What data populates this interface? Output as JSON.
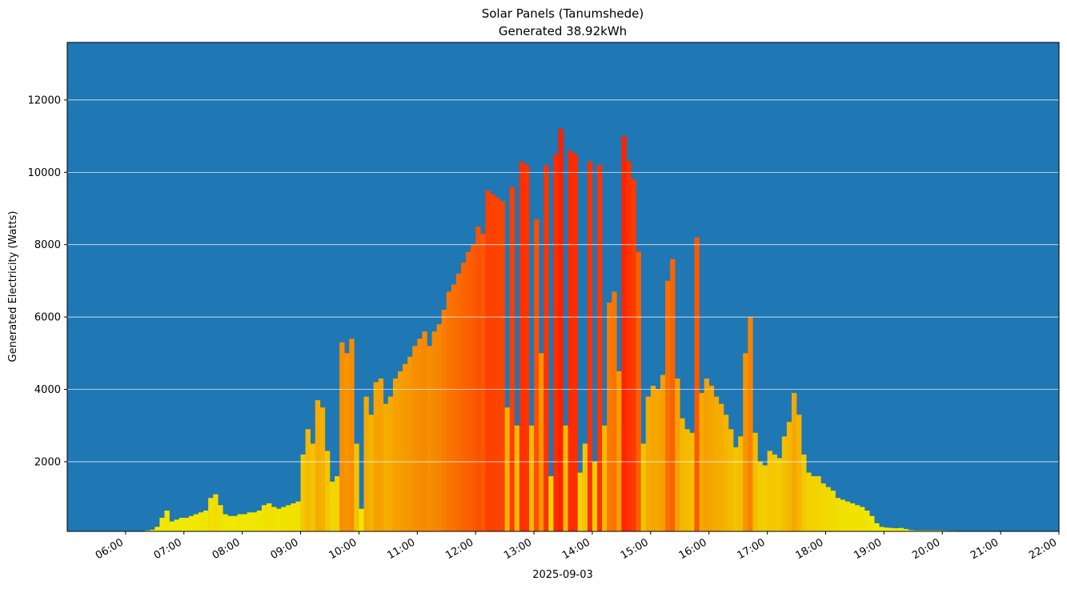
{
  "chart_data": {
    "type": "bar",
    "title": "Solar Panels (Tanumshede)",
    "subtitle": "Generated 38.92kWh",
    "x_label": "2025-09-03",
    "y_label": "Generated Electricity (Watts)",
    "background": "#1f77b4",
    "colormap": [
      "#f0f000",
      "#ff2000"
    ],
    "grid": true,
    "grid_color": "#ffffff",
    "xlim": [
      "05:00",
      "22:00"
    ],
    "xticks": [
      "06:00",
      "07:00",
      "08:00",
      "09:00",
      "10:00",
      "11:00",
      "12:00",
      "13:00",
      "14:00",
      "15:00",
      "16:00",
      "17:00",
      "18:00",
      "19:00",
      "20:00",
      "21:00",
      "22:00"
    ],
    "ylim": [
      75,
      13590
    ],
    "yticks": [
      2000,
      4000,
      6000,
      8000,
      10000,
      12000
    ],
    "x": [
      "06:20",
      "06:25",
      "06:30",
      "06:35",
      "06:40",
      "06:45",
      "06:50",
      "06:55",
      "07:00",
      "07:05",
      "07:10",
      "07:15",
      "07:20",
      "07:25",
      "07:30",
      "07:35",
      "07:40",
      "07:45",
      "07:50",
      "07:55",
      "08:00",
      "08:05",
      "08:10",
      "08:15",
      "08:20",
      "08:25",
      "08:30",
      "08:35",
      "08:40",
      "08:45",
      "08:50",
      "08:55",
      "09:00",
      "09:05",
      "09:10",
      "09:15",
      "09:20",
      "09:25",
      "09:30",
      "09:35",
      "09:40",
      "09:45",
      "09:50",
      "09:55",
      "10:00",
      "10:05",
      "10:10",
      "10:15",
      "10:20",
      "10:25",
      "10:30",
      "10:35",
      "10:40",
      "10:45",
      "10:50",
      "10:55",
      "11:00",
      "11:05",
      "11:10",
      "11:15",
      "11:20",
      "11:25",
      "11:30",
      "11:35",
      "11:40",
      "11:45",
      "11:50",
      "11:55",
      "12:00",
      "12:05",
      "12:10",
      "12:15",
      "12:20",
      "12:25",
      "12:30",
      "12:35",
      "12:40",
      "12:45",
      "12:50",
      "12:55",
      "13:00",
      "13:05",
      "13:10",
      "13:15",
      "13:20",
      "13:25",
      "13:30",
      "13:35",
      "13:40",
      "13:45",
      "13:50",
      "13:55",
      "14:00",
      "14:05",
      "14:10",
      "14:15",
      "14:20",
      "14:25",
      "14:30",
      "14:35",
      "14:40",
      "14:45",
      "14:50",
      "14:55",
      "15:00",
      "15:05",
      "15:10",
      "15:15",
      "15:20",
      "15:25",
      "15:30",
      "15:35",
      "15:40",
      "15:45",
      "15:50",
      "15:55",
      "16:00",
      "16:05",
      "16:10",
      "16:15",
      "16:20",
      "16:25",
      "16:30",
      "16:35",
      "16:40",
      "16:45",
      "16:50",
      "16:55",
      "17:00",
      "17:05",
      "17:10",
      "17:15",
      "17:20",
      "17:25",
      "17:30",
      "17:35",
      "17:40",
      "17:45",
      "17:50",
      "17:55",
      "18:00",
      "18:05",
      "18:10",
      "18:15",
      "18:20",
      "18:25",
      "18:30",
      "18:35",
      "18:40",
      "18:45",
      "18:50",
      "18:55",
      "19:00",
      "19:05",
      "19:10",
      "19:15",
      "19:20",
      "19:25",
      "19:30",
      "19:35",
      "19:40",
      "19:45",
      "19:50",
      "19:55",
      "20:00",
      "20:05",
      "20:10",
      "20:15",
      "20:20",
      "20:25",
      "20:30",
      "20:35",
      "20:40"
    ],
    "values": [
      100,
      120,
      200,
      450,
      650,
      350,
      400,
      450,
      450,
      500,
      550,
      600,
      650,
      1000,
      1100,
      800,
      550,
      500,
      500,
      550,
      550,
      600,
      600,
      650,
      800,
      850,
      750,
      700,
      750,
      800,
      850,
      900,
      2200,
      2900,
      2500,
      3700,
      3500,
      2300,
      1450,
      1600,
      5300,
      5000,
      5400,
      2500,
      700,
      3800,
      3300,
      4200,
      4300,
      3600,
      3800,
      4300,
      4500,
      4700,
      4900,
      5200,
      5400,
      5600,
      5200,
      5600,
      5800,
      6200,
      6700,
      6900,
      7200,
      7500,
      7800,
      8000,
      8500,
      8300,
      9500,
      9400,
      9300,
      9200,
      3500,
      9600,
      3000,
      10300,
      10200,
      3000,
      8700,
      5000,
      10200,
      1600,
      10500,
      11200,
      3000,
      10600,
      10500,
      1700,
      2500,
      10300,
      2000,
      10200,
      3000,
      6400,
      6700,
      4500,
      11000,
      10300,
      9800,
      7800,
      2500,
      3800,
      4100,
      4000,
      4400,
      7000,
      7600,
      4300,
      3200,
      2900,
      2800,
      8200,
      3900,
      4300,
      4100,
      3800,
      3600,
      3300,
      2900,
      2400,
      2700,
      5000,
      6000,
      2800,
      2000,
      1900,
      2300,
      2200,
      2100,
      2700,
      3100,
      3900,
      3300,
      2200,
      1700,
      1600,
      1600,
      1400,
      1300,
      1200,
      1000,
      950,
      900,
      850,
      800,
      750,
      650,
      500,
      300,
      200,
      180,
      170,
      160,
      170,
      140,
      110,
      100,
      100,
      100,
      100,
      100,
      100,
      95,
      90,
      90,
      85,
      85,
      80,
      80,
      80,
      80
    ]
  }
}
